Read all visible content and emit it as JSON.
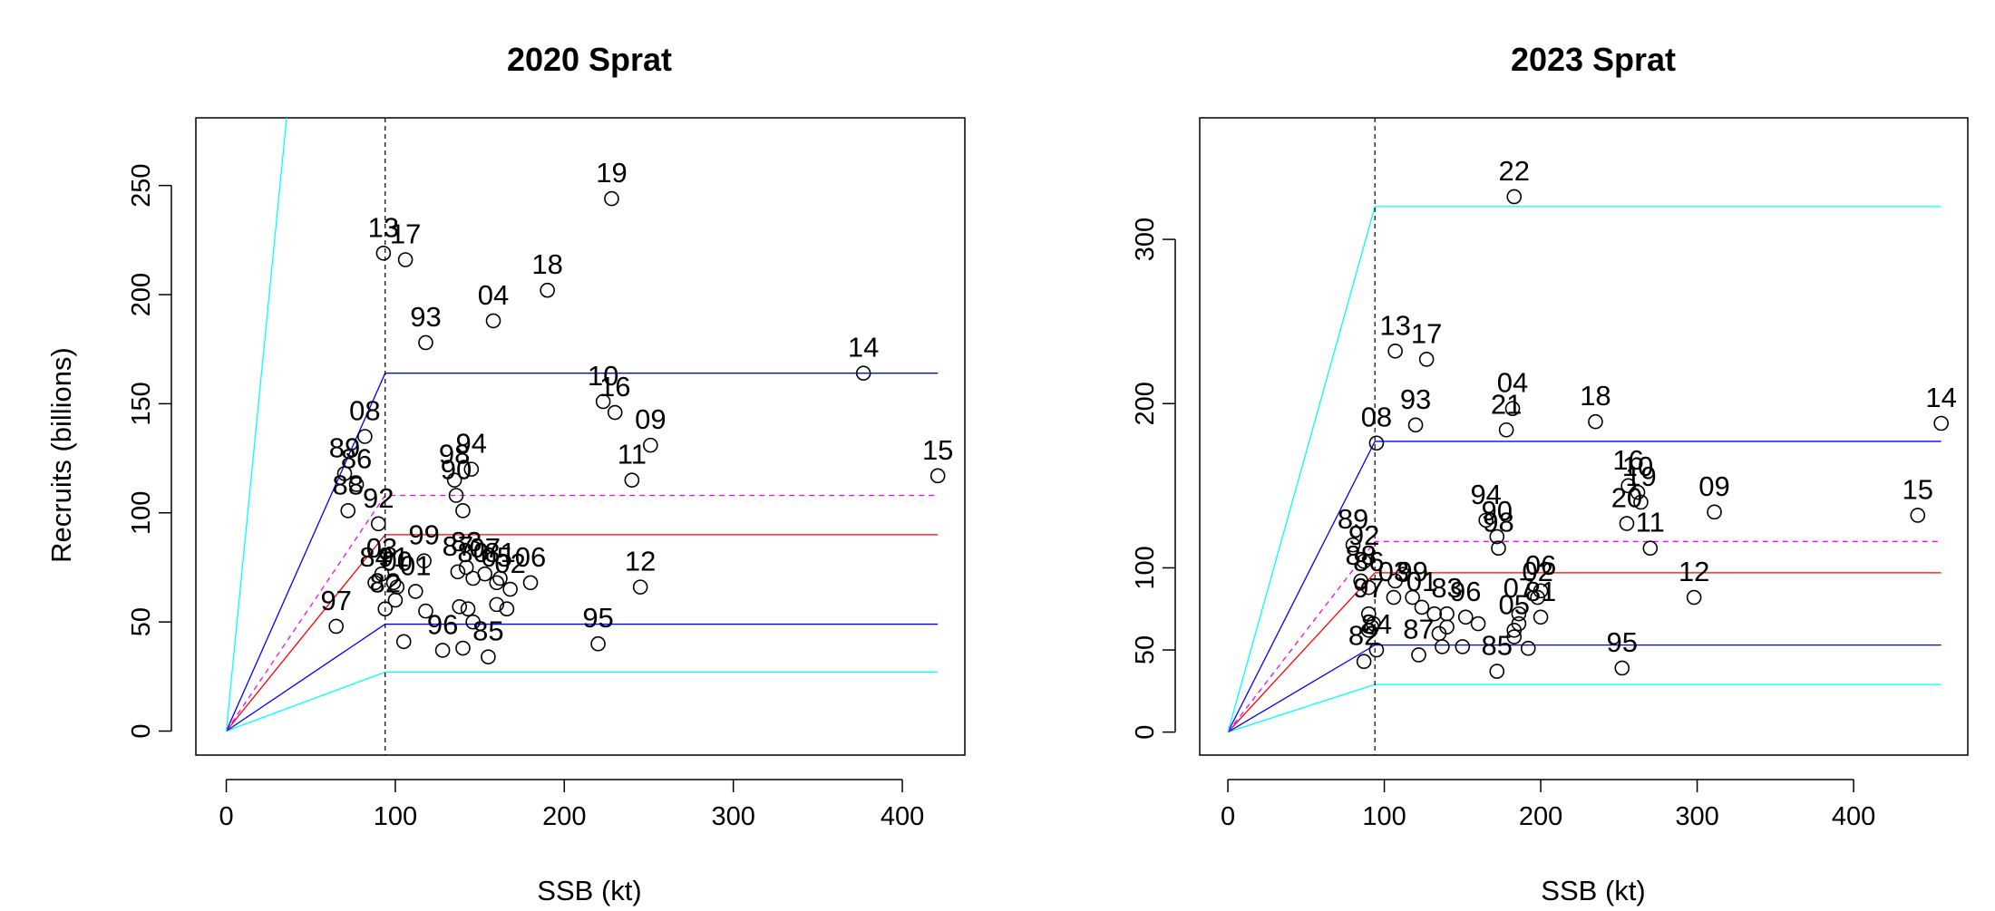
{
  "chart_data": [
    {
      "type": "scatter",
      "title": "2020 Sprat",
      "xlabel": "SSB (kt)",
      "ylabel": "Recruits (billions)",
      "xlim": [
        -18,
        437
      ],
      "ylim": [
        -11,
        281
      ],
      "xticks": [
        0,
        100,
        200,
        300,
        400
      ],
      "yticks": [
        0,
        50,
        100,
        150,
        200,
        250
      ],
      "blim": 94,
      "points": [
        {
          "label": "13",
          "x": 93,
          "y": 219
        },
        {
          "label": "17",
          "x": 106,
          "y": 216
        },
        {
          "label": "19",
          "x": 228,
          "y": 244
        },
        {
          "label": "18",
          "x": 190,
          "y": 202
        },
        {
          "label": "04",
          "x": 158,
          "y": 188
        },
        {
          "label": "93",
          "x": 118,
          "y": 178
        },
        {
          "label": "14",
          "x": 377,
          "y": 164
        },
        {
          "label": "10",
          "x": 223,
          "y": 151
        },
        {
          "label": "16",
          "x": 230,
          "y": 146
        },
        {
          "label": "09",
          "x": 251,
          "y": 131
        },
        {
          "label": "08",
          "x": 82,
          "y": 135
        },
        {
          "label": "94",
          "x": 145,
          "y": 120
        },
        {
          "label": "98",
          "x": 135,
          "y": 115
        },
        {
          "label": "90",
          "x": 136,
          "y": 108
        },
        {
          "label": "11",
          "x": 240,
          "y": 115
        },
        {
          "label": "15",
          "x": 421,
          "y": 117
        },
        {
          "label": "89",
          "x": 70,
          "y": 118
        },
        {
          "label": "86",
          "x": 77,
          "y": 113
        },
        {
          "label": "92",
          "x": 90,
          "y": 95
        },
        {
          "label": "88",
          "x": 72,
          "y": 101
        },
        {
          "label": "99",
          "x": 117,
          "y": 78
        },
        {
          "label": "83",
          "x": 142,
          "y": 75
        },
        {
          "label": "03",
          "x": 92,
          "y": 72
        },
        {
          "label": "91",
          "x": 99,
          "y": 68
        },
        {
          "label": "01",
          "x": 112,
          "y": 64
        },
        {
          "label": "81",
          "x": 162,
          "y": 70
        },
        {
          "label": "06",
          "x": 180,
          "y": 68
        },
        {
          "label": "87",
          "x": 137,
          "y": 73
        },
        {
          "label": "80",
          "x": 146,
          "y": 70
        },
        {
          "label": "07",
          "x": 153,
          "y": 72
        },
        {
          "label": "05",
          "x": 160,
          "y": 68
        },
        {
          "label": "02",
          "x": 168,
          "y": 65
        },
        {
          "label": "12",
          "x": 245,
          "y": 66
        },
        {
          "label": "84",
          "x": 88,
          "y": 68
        },
        {
          "label": "00",
          "x": 101,
          "y": 66
        },
        {
          "label": "97",
          "x": 65,
          "y": 48
        },
        {
          "label": "82",
          "x": 94,
          "y": 56
        },
        {
          "label": "96",
          "x": 128,
          "y": 37
        },
        {
          "label": "85",
          "x": 155,
          "y": 34
        },
        {
          "label": "95",
          "x": 220,
          "y": 40
        },
        {
          "label": "",
          "x": 105,
          "y": 41
        },
        {
          "label": "",
          "x": 118,
          "y": 55
        },
        {
          "label": "",
          "x": 140,
          "y": 38
        },
        {
          "label": "",
          "x": 138,
          "y": 57
        },
        {
          "label": "",
          "x": 143,
          "y": 56
        },
        {
          "label": "",
          "x": 160,
          "y": 58
        },
        {
          "label": "",
          "x": 166,
          "y": 56
        },
        {
          "label": "",
          "x": 146,
          "y": 50
        },
        {
          "label": "",
          "x": 100,
          "y": 60
        },
        {
          "label": "",
          "x": 140,
          "y": 101
        }
      ],
      "reference_lines": [
        {
          "color": "#00ffff",
          "dash": false,
          "level": 27
        },
        {
          "color": "#0000ff",
          "dash": false,
          "level": 49
        },
        {
          "color": "#ff0000",
          "dash": false,
          "level": 90
        },
        {
          "color": "#ff00ff",
          "dash": true,
          "level": 108
        },
        {
          "color": "#0000ff",
          "dash": false,
          "level": 164
        },
        {
          "color": "#00ffff",
          "dash": false,
          "level": 740
        }
      ],
      "line_end_x": 421
    },
    {
      "type": "scatter",
      "title": "2023 Sprat",
      "xlabel": "SSB (kt)",
      "ylabel": "",
      "xlim": [
        -18,
        473
      ],
      "ylim": [
        -14,
        374
      ],
      "xticks": [
        0,
        100,
        200,
        300,
        400
      ],
      "yticks": [
        0,
        50,
        100,
        200,
        300
      ],
      "blim": 94,
      "points": [
        {
          "label": "22",
          "x": 183,
          "y": 326
        },
        {
          "label": "13",
          "x": 107,
          "y": 232
        },
        {
          "label": "17",
          "x": 127,
          "y": 227
        },
        {
          "label": "04",
          "x": 182,
          "y": 197
        },
        {
          "label": "21",
          "x": 178,
          "y": 184
        },
        {
          "label": "18",
          "x": 235,
          "y": 189
        },
        {
          "label": "93",
          "x": 120,
          "y": 187
        },
        {
          "label": "08",
          "x": 95,
          "y": 176
        },
        {
          "label": "14",
          "x": 456,
          "y": 188
        },
        {
          "label": "16",
          "x": 256,
          "y": 150
        },
        {
          "label": "10",
          "x": 262,
          "y": 146
        },
        {
          "label": "19",
          "x": 264,
          "y": 140
        },
        {
          "label": "20",
          "x": 255,
          "y": 127
        },
        {
          "label": "09",
          "x": 311,
          "y": 134
        },
        {
          "label": "15",
          "x": 441,
          "y": 132
        },
        {
          "label": "11",
          "x": 270,
          "y": 112
        },
        {
          "label": "94",
          "x": 165,
          "y": 129
        },
        {
          "label": "90",
          "x": 172,
          "y": 119
        },
        {
          "label": "98",
          "x": 173,
          "y": 112
        },
        {
          "label": "89",
          "x": 80,
          "y": 114
        },
        {
          "label": "92",
          "x": 87,
          "y": 104
        },
        {
          "label": "06",
          "x": 200,
          "y": 86
        },
        {
          "label": "12",
          "x": 298,
          "y": 82
        },
        {
          "label": "03",
          "x": 106,
          "y": 82
        },
        {
          "label": "99",
          "x": 118,
          "y": 82
        },
        {
          "label": "01",
          "x": 124,
          "y": 76
        },
        {
          "label": "83",
          "x": 140,
          "y": 72
        },
        {
          "label": "02",
          "x": 198,
          "y": 82
        },
        {
          "label": "07",
          "x": 186,
          "y": 72
        },
        {
          "label": "05",
          "x": 183,
          "y": 62
        },
        {
          "label": "81",
          "x": 200,
          "y": 70
        },
        {
          "label": "88",
          "x": 85,
          "y": 92
        },
        {
          "label": "86",
          "x": 90,
          "y": 88
        },
        {
          "label": "97",
          "x": 90,
          "y": 72
        },
        {
          "label": "84",
          "x": 95,
          "y": 50
        },
        {
          "label": "82",
          "x": 87,
          "y": 43
        },
        {
          "label": "87",
          "x": 122,
          "y": 47
        },
        {
          "label": "96",
          "x": 152,
          "y": 70
        },
        {
          "label": "85",
          "x": 172,
          "y": 37
        },
        {
          "label": "95",
          "x": 252,
          "y": 39
        },
        {
          "label": "",
          "x": 132,
          "y": 72
        },
        {
          "label": "",
          "x": 140,
          "y": 64
        },
        {
          "label": "",
          "x": 135,
          "y": 60
        },
        {
          "label": "",
          "x": 137,
          "y": 52
        },
        {
          "label": "",
          "x": 150,
          "y": 52
        },
        {
          "label": "",
          "x": 160,
          "y": 66
        },
        {
          "label": "",
          "x": 183,
          "y": 58
        },
        {
          "label": "",
          "x": 186,
          "y": 66
        },
        {
          "label": "",
          "x": 192,
          "y": 51
        },
        {
          "label": "",
          "x": 90,
          "y": 62
        },
        {
          "label": "",
          "x": 92,
          "y": 64
        },
        {
          "label": "",
          "x": 93,
          "y": 66
        },
        {
          "label": "",
          "x": 107,
          "y": 92
        },
        {
          "label": "",
          "x": 112,
          "y": 96
        }
      ],
      "reference_lines": [
        {
          "color": "#00ffff",
          "dash": false,
          "level": 29
        },
        {
          "color": "#0000ff",
          "dash": false,
          "level": 53
        },
        {
          "color": "#ff0000",
          "dash": false,
          "level": 97
        },
        {
          "color": "#ff00ff",
          "dash": true,
          "level": 116
        },
        {
          "color": "#0000ff",
          "dash": false,
          "level": 177
        },
        {
          "color": "#00ffff",
          "dash": false,
          "level": 320
        }
      ],
      "line_end_x": 456
    }
  ]
}
